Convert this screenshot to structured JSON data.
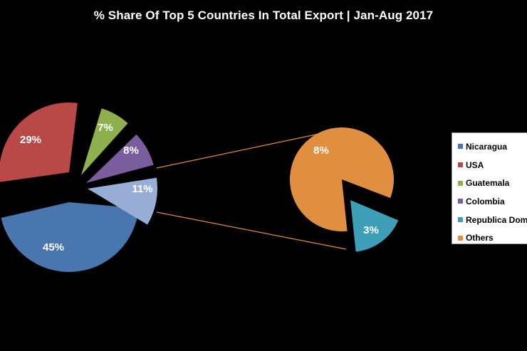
{
  "chart_data": {
    "type": "pie",
    "title": "% Share Of Top 5 Countries In Total Export | Jan-Aug 2017",
    "main_pie": [
      {
        "name": "Nicaragua",
        "value": 45,
        "label": "45%",
        "color": "#4a76b0"
      },
      {
        "name": "USA",
        "value": 29,
        "label": "29%",
        "color": "#b84946"
      },
      {
        "name": "Guatemala",
        "value": 7,
        "label": "7%",
        "color": "#8fb04f"
      },
      {
        "name": "Colombia",
        "value": 8,
        "label": "8%",
        "color": "#7a5d9d"
      },
      {
        "name": "Others",
        "value": 11,
        "label": "11%",
        "color": "#99aed6"
      }
    ],
    "secondary_pie": [
      {
        "name": "Others",
        "value": 8,
        "label": "8%",
        "color": "#e08e3f"
      },
      {
        "name": "Republica Dominicana",
        "value": 3,
        "label": "3%",
        "color": "#3f9eb7"
      }
    ],
    "legend": {
      "placement": "right",
      "items": [
        {
          "label": "Nicaragua",
          "color": "#4a76b0"
        },
        {
          "label": "USA",
          "color": "#b84946"
        },
        {
          "label": "Guatemala",
          "color": "#8fb04f"
        },
        {
          "label": "Colombia",
          "color": "#7a5d9d"
        },
        {
          "label": "Republica Dominicana",
          "color": "#3f9eb7"
        },
        {
          "label": "Others",
          "color": "#e08e3f"
        }
      ]
    },
    "connector_color": "#e08e3f"
  }
}
